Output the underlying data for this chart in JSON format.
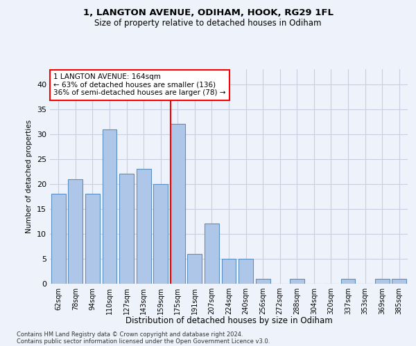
{
  "title1": "1, LANGTON AVENUE, ODIHAM, HOOK, RG29 1FL",
  "title2": "Size of property relative to detached houses in Odiham",
  "xlabel": "Distribution of detached houses by size in Odiham",
  "ylabel": "Number of detached properties",
  "categories": [
    "62sqm",
    "78sqm",
    "94sqm",
    "110sqm",
    "127sqm",
    "143sqm",
    "159sqm",
    "175sqm",
    "191sqm",
    "207sqm",
    "224sqm",
    "240sqm",
    "256sqm",
    "272sqm",
    "288sqm",
    "304sqm",
    "320sqm",
    "337sqm",
    "353sqm",
    "369sqm",
    "385sqm"
  ],
  "values": [
    18,
    21,
    18,
    31,
    22,
    23,
    20,
    32,
    6,
    12,
    5,
    5,
    1,
    0,
    1,
    0,
    0,
    1,
    0,
    1,
    1
  ],
  "bar_color": "#aec6e8",
  "bar_edge_color": "#5a8fc2",
  "redline_index": 7,
  "annotation_line1": "1 LANGTON AVENUE: 164sqm",
  "annotation_line2": "← 63% of detached houses are smaller (136)",
  "annotation_line3": "36% of semi-detached houses are larger (78) →",
  "ylim": [
    0,
    43
  ],
  "yticks": [
    0,
    5,
    10,
    15,
    20,
    25,
    30,
    35,
    40
  ],
  "footer1": "Contains HM Land Registry data © Crown copyright and database right 2024.",
  "footer2": "Contains public sector information licensed under the Open Government Licence v3.0.",
  "bg_color": "#eef2fa",
  "grid_color": "#c8d0e0"
}
